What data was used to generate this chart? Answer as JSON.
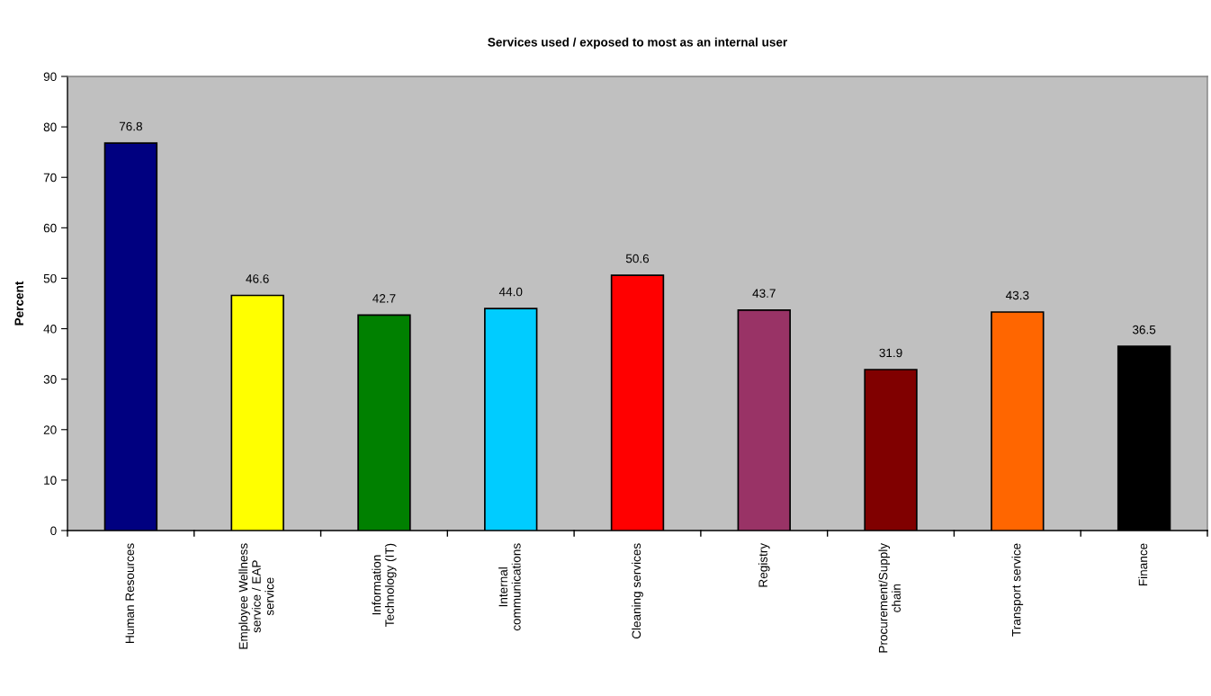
{
  "chart_data": {
    "type": "bar",
    "title": "Services used / exposed to most as an internal user",
    "ylabel": "Percent",
    "categories": [
      "Human Resources",
      "Employee Wellness\nservice / EAP\nservice",
      "Information\nTechnology (IT)",
      "Internal\ncommunications",
      "Cleaning services",
      "Registry",
      "Procurement/Supply\nchain",
      "Transport service",
      "Finance"
    ],
    "values": [
      76.8,
      46.6,
      42.7,
      44.0,
      50.6,
      43.7,
      31.9,
      43.3,
      36.5
    ],
    "value_labels": [
      "76.8",
      "46.6",
      "42.7",
      "44.0",
      "50.6",
      "43.7",
      "31.9",
      "43.3",
      "36.5"
    ],
    "colors": [
      "#000080",
      "#ffff00",
      "#008000",
      "#00ccff",
      "#ff0000",
      "#993366",
      "#800000",
      "#ff6600",
      "#000000"
    ],
    "ylim": [
      0,
      90
    ],
    "yticks": [
      0,
      10,
      20,
      30,
      40,
      50,
      60,
      70,
      80,
      90
    ],
    "grid": false,
    "legend": false
  }
}
